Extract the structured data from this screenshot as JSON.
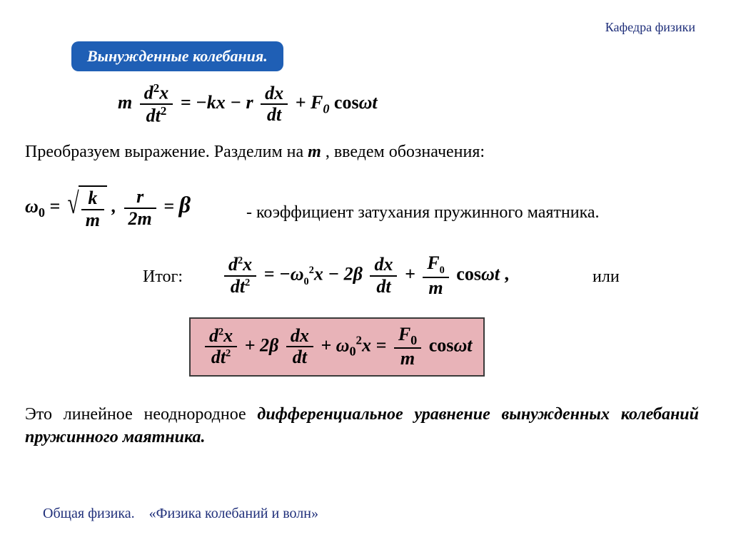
{
  "header": {
    "dept": "Кафедра физики"
  },
  "title": "Вынужденные колебания.",
  "text": {
    "transform": "Преобразуем выражение. Разделим на ",
    "transform_var": "m",
    "transform_tail": " , введем обозначения:",
    "damping_desc": "- коэффициент затухания пружинного маятника.",
    "result_label": "Итог:",
    "or": "или",
    "conclusion_pre": "Это линейное неоднородное ",
    "conclusion_em": "дифференциальное уравнение вынужденных колебаний пружинного маятника.",
    "comma": " ,"
  },
  "footer": {
    "course": "Общая физика.",
    "topic": "«Физика колебаний и волн»"
  },
  "style": {
    "bg": "#ffffff",
    "title_bg": "#1f5fb5",
    "title_fg": "#ffffff",
    "box_bg": "#e8b3b8",
    "box_border": "#3a3a3a",
    "header_color": "#1f2f7a",
    "body_font": "Times New Roman",
    "eq_fontsize": 26,
    "text_fontsize": 24
  },
  "equations": {
    "eq1": {
      "lhs_coef": "m",
      "frac1_num_pre": "d",
      "frac1_num_exp": "2",
      "frac1_num_var": "x",
      "frac1_den_pre": "dt",
      "frac1_den_exp": "2",
      "rhs1": " = −kx − r ",
      "frac2_num": "dx",
      "frac2_den": "dt",
      "rhs2": " + F",
      "F_sub": "0",
      "rhs3": " cos",
      "omega": "ω",
      "t": "t"
    },
    "eq2": {
      "omega": "ω",
      "omega_sub": "0",
      "eq": " = ",
      "sqrt_num": "k",
      "sqrt_den": "m",
      "sep": " ,   ",
      "f2_num": "r",
      "f2_den": "2m",
      "eq2": " = ",
      "beta": "β"
    },
    "eq3": {
      "f1_num_pre": "d",
      "f1_num_exp": "2",
      "f1_num_var": "x",
      "f1_den_pre": "dt",
      "f1_den_exp": "2",
      "mid1": " = −",
      "omega": "ω",
      "omega_sub": "0",
      "omega_exp": "2",
      "mid1b": "x − 2",
      "beta": "β",
      "sp": " ",
      "f2_num": "dx",
      "f2_den": "dt",
      "mid2": " + ",
      "f3_num": "F",
      "f3_num_sub": "0",
      "f3_den": "m",
      "mid3": " cos",
      "omg": "ω",
      "t": "t",
      "tail": " ,"
    },
    "eq4": {
      "f1_num_pre": "d",
      "f1_num_exp": "2",
      "f1_num_var": "x",
      "f1_den_pre": "dt",
      "f1_den_exp": "2",
      "mid1": " + 2",
      "beta": "β",
      "sp": " ",
      "f2_num": "dx",
      "f2_den": "dt",
      "mid2": " + ",
      "omega": "ω",
      "omega_sub": "0",
      "omega_exp": "2",
      "mid2b": "x = ",
      "f3_num": "F",
      "f3_num_sub": "0",
      "f3_den": "m",
      "mid3": " cos",
      "omg": "ω",
      "t": "t"
    }
  }
}
